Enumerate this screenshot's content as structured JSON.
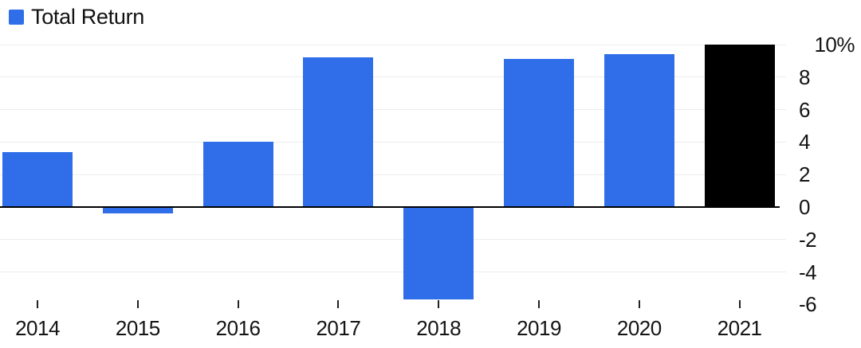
{
  "legend": {
    "label": "Total Return",
    "swatch_color": "#2f6ee8"
  },
  "chart_data": {
    "type": "bar",
    "title": "",
    "categories": [
      "2014",
      "2015",
      "2016",
      "2017",
      "2018",
      "2019",
      "2020",
      "2021"
    ],
    "series": [
      {
        "name": "Total Return",
        "values": [
          3.4,
          -0.4,
          4.0,
          9.2,
          -5.7,
          9.1,
          9.4,
          10.0
        ]
      }
    ],
    "bar_color": "#2f6ee8",
    "highlight_color": "#000000",
    "highlight_index": 7,
    "highlight_category": "2021",
    "ylim": [
      -6,
      10
    ],
    "yticks": [
      {
        "value": 10,
        "label": "10%"
      },
      {
        "value": 8,
        "label": "8"
      },
      {
        "value": 6,
        "label": "6"
      },
      {
        "value": 4,
        "label": "4"
      },
      {
        "value": 2,
        "label": "2"
      },
      {
        "value": 0,
        "label": "0"
      },
      {
        "value": -2,
        "label": "-2"
      },
      {
        "value": -4,
        "label": "-4"
      },
      {
        "value": -6,
        "label": "-6"
      }
    ],
    "axis_side": "right",
    "grid": true,
    "zero_axis": true,
    "legend_position": "top-left",
    "gridline_color": "#ececec",
    "axis_line_color": "#000000"
  }
}
